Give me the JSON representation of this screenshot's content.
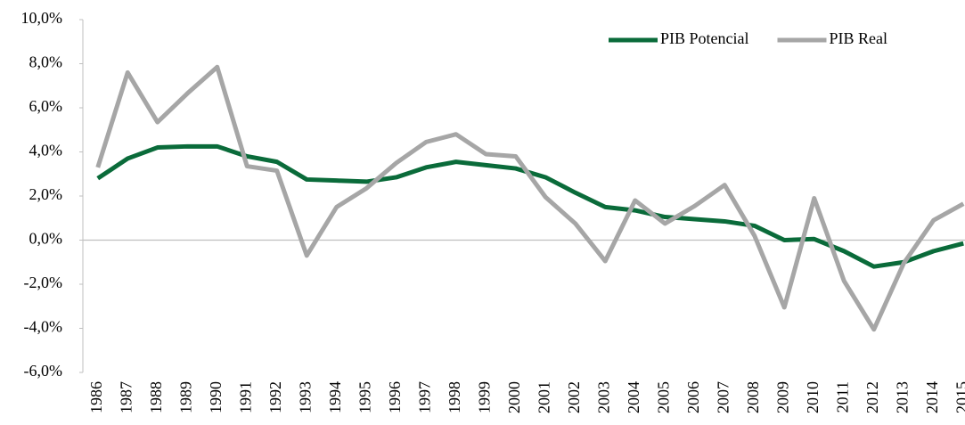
{
  "chart_data": {
    "type": "line",
    "categories": [
      "1986",
      "1987",
      "1988",
      "1989",
      "1990",
      "1991",
      "1992",
      "1993",
      "1994",
      "1995",
      "1996",
      "1997",
      "1998",
      "1999",
      "2000",
      "2001",
      "2002",
      "2003",
      "2004",
      "2005",
      "2006",
      "2007",
      "2008",
      "2009",
      "2010",
      "2011",
      "2012",
      "2013",
      "2014",
      "2015"
    ],
    "series": [
      {
        "name": "PIB Potencial",
        "color": "#0a6b3a",
        "values": [
          2.8,
          3.7,
          4.2,
          4.25,
          4.25,
          3.8,
          3.55,
          2.75,
          2.7,
          2.65,
          2.85,
          3.3,
          3.55,
          3.4,
          3.25,
          2.85,
          2.15,
          1.5,
          1.35,
          1.05,
          0.95,
          0.85,
          0.65,
          0.0,
          0.05,
          -0.5,
          -1.2,
          -1.0,
          -0.5,
          -0.15
        ]
      },
      {
        "name": "PIB Real",
        "color": "#a6a6a6",
        "values": [
          3.3,
          7.6,
          5.35,
          6.65,
          7.85,
          3.35,
          3.15,
          -0.7,
          1.5,
          2.35,
          3.5,
          4.45,
          4.8,
          3.9,
          3.8,
          1.95,
          0.75,
          -0.95,
          1.8,
          0.75,
          1.55,
          2.5,
          0.2,
          -3.05,
          1.9,
          -1.85,
          -4.05,
          -1.05,
          0.9,
          1.65
        ]
      }
    ],
    "ylim": [
      -6,
      10
    ],
    "yticks": [
      {
        "value": -6,
        "label": "-6,0%"
      },
      {
        "value": -4,
        "label": "-4,0%"
      },
      {
        "value": -2,
        "label": "-2,0%"
      },
      {
        "value": 0,
        "label": "0,0%"
      },
      {
        "value": 2,
        "label": "2,0%"
      },
      {
        "value": 4,
        "label": "4,0%"
      },
      {
        "value": 6,
        "label": "6,0%"
      },
      {
        "value": 8,
        "label": "8,0%"
      },
      {
        "value": 10,
        "label": "10,0%"
      }
    ],
    "legend": "top-right"
  }
}
